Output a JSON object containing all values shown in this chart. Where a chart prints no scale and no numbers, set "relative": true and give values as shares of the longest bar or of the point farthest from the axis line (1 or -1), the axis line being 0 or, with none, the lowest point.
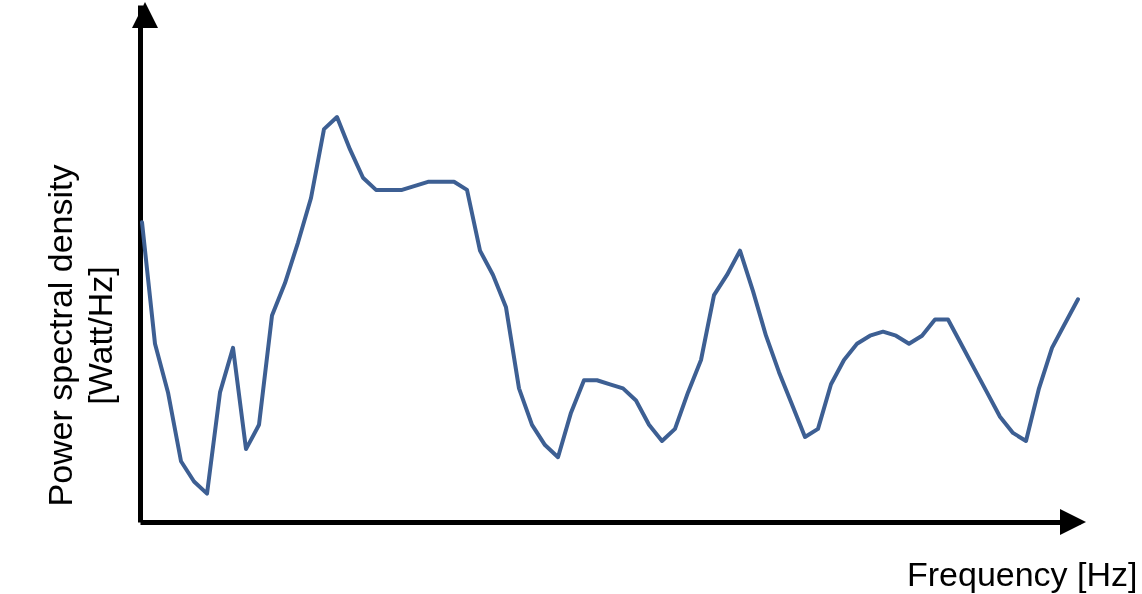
{
  "chart_data": {
    "type": "line",
    "relative": true,
    "xlabel": "Frequency [Hz]",
    "ylabel": "Power spectral density [Watt/Hz]",
    "line_style": "solid",
    "categories": [
      null,
      null,
      null,
      null,
      null,
      null,
      null,
      null,
      null,
      null,
      null,
      null,
      null,
      null,
      null,
      null,
      null,
      null,
      null,
      null,
      null,
      null,
      null,
      null,
      null,
      null,
      null,
      null,
      null,
      null,
      null,
      null,
      null,
      null,
      null,
      null,
      null,
      null,
      null,
      null,
      null,
      null,
      null,
      null,
      null,
      null,
      null,
      null,
      null,
      null,
      null,
      null,
      null,
      null,
      null,
      null,
      null,
      null,
      null,
      null,
      null,
      null,
      null,
      null,
      null,
      null,
      null,
      null,
      null,
      null,
      null,
      null,
      null
    ],
    "series": [
      {
        "color": "#3d5f93",
        "values": [
          0.74,
          0.44,
          0.32,
          0.15,
          0.1,
          0.07,
          0.32,
          0.43,
          0.18,
          0.24,
          0.51,
          0.59,
          0.69,
          0.8,
          0.97,
          1.0,
          0.92,
          0.85,
          0.82,
          0.82,
          0.82,
          0.83,
          0.84,
          0.84,
          0.84,
          0.82,
          0.67,
          0.61,
          0.53,
          0.33,
          0.24,
          0.19,
          0.16,
          0.27,
          0.35,
          0.35,
          0.34,
          0.33,
          0.3,
          0.24,
          0.2,
          0.23,
          0.32,
          0.4,
          0.56,
          0.61,
          0.67,
          0.57,
          0.46,
          0.37,
          0.29,
          0.21,
          0.23,
          0.34,
          0.4,
          0.44,
          0.46,
          0.47,
          0.46,
          0.44,
          0.46,
          0.5,
          0.5,
          0.44,
          0.38,
          0.32,
          0.26,
          0.22,
          0.2,
          0.33,
          0.43,
          0.49,
          0.55
        ]
      }
    ]
  }
}
